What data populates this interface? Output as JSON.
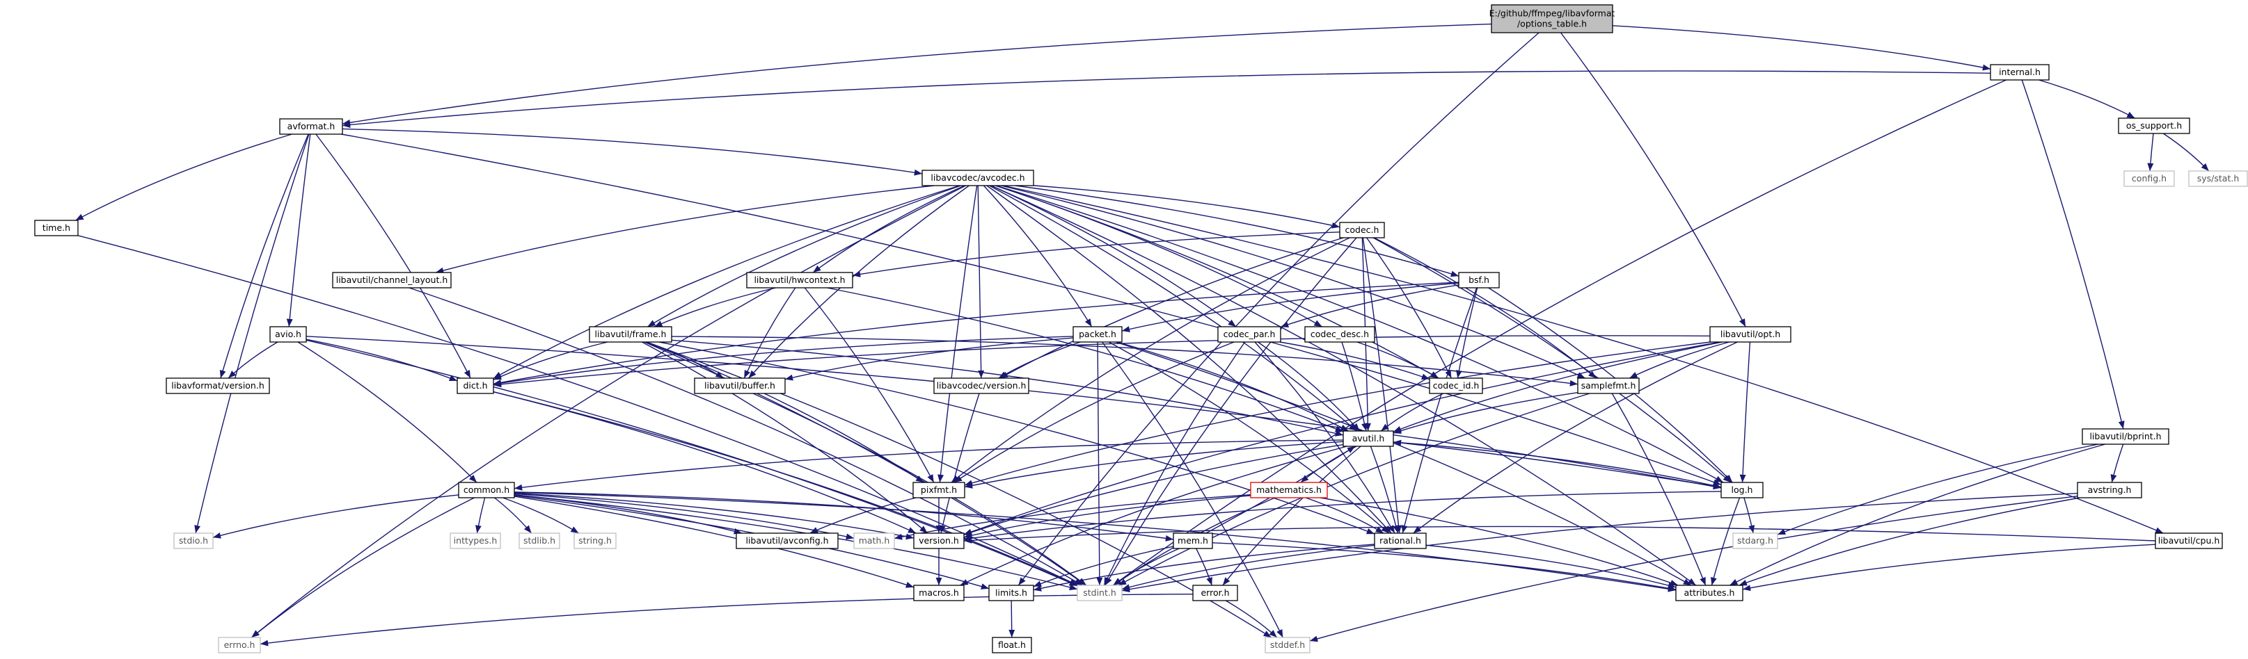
{
  "graph": {
    "root": "options_table.h",
    "nodes": [
      {
        "id": "root",
        "label": "E:/github/ffmpeg/libavformat\n/options_table.h",
        "kind": "root"
      },
      {
        "id": "internal",
        "label": "internal.h"
      },
      {
        "id": "avformat",
        "label": "avformat.h"
      },
      {
        "id": "os_support",
        "label": "os_support.h"
      },
      {
        "id": "config",
        "label": "config.h",
        "kind": "system"
      },
      {
        "id": "sysstat",
        "label": "sys/stat.h",
        "kind": "system"
      },
      {
        "id": "time",
        "label": "time.h"
      },
      {
        "id": "avcodec",
        "label": "libavcodec/avcodec.h"
      },
      {
        "id": "codec",
        "label": "codec.h"
      },
      {
        "id": "bsf",
        "label": "bsf.h"
      },
      {
        "id": "chlayout",
        "label": "libavutil/channel_layout.h"
      },
      {
        "id": "hwcontext",
        "label": "libavutil/hwcontext.h"
      },
      {
        "id": "avio",
        "label": "avio.h"
      },
      {
        "id": "frame",
        "label": "libavutil/frame.h"
      },
      {
        "id": "packet",
        "label": "packet.h"
      },
      {
        "id": "codec_par",
        "label": "codec_par.h"
      },
      {
        "id": "codec_desc",
        "label": "codec_desc.h"
      },
      {
        "id": "opt",
        "label": "libavutil/opt.h"
      },
      {
        "id": "lafversion",
        "label": "libavformat/version.h"
      },
      {
        "id": "dict",
        "label": "dict.h"
      },
      {
        "id": "buffer",
        "label": "libavutil/buffer.h"
      },
      {
        "id": "lacversion",
        "label": "libavcodec/version.h"
      },
      {
        "id": "codec_id",
        "label": "codec_id.h"
      },
      {
        "id": "samplefmt",
        "label": "samplefmt.h"
      },
      {
        "id": "bprint",
        "label": "libavutil/bprint.h"
      },
      {
        "id": "avutil",
        "label": "avutil.h"
      },
      {
        "id": "common",
        "label": "common.h"
      },
      {
        "id": "pixfmt",
        "label": "pixfmt.h"
      },
      {
        "id": "mathematics",
        "label": "mathematics.h",
        "kind": "warning"
      },
      {
        "id": "log",
        "label": "log.h"
      },
      {
        "id": "avstring",
        "label": "avstring.h"
      },
      {
        "id": "stdio",
        "label": "stdio.h",
        "kind": "system"
      },
      {
        "id": "inttypes",
        "label": "inttypes.h",
        "kind": "system"
      },
      {
        "id": "stdlib",
        "label": "stdlib.h",
        "kind": "system"
      },
      {
        "id": "string",
        "label": "string.h",
        "kind": "system"
      },
      {
        "id": "avconfig",
        "label": "libavutil/avconfig.h"
      },
      {
        "id": "math",
        "label": "math.h",
        "kind": "system"
      },
      {
        "id": "version",
        "label": "version.h"
      },
      {
        "id": "mem",
        "label": "mem.h"
      },
      {
        "id": "rational",
        "label": "rational.h"
      },
      {
        "id": "stdarg",
        "label": "stdarg.h",
        "kind": "system"
      },
      {
        "id": "cpu",
        "label": "libavutil/cpu.h"
      },
      {
        "id": "macros",
        "label": "macros.h"
      },
      {
        "id": "limits",
        "label": "limits.h"
      },
      {
        "id": "stdint",
        "label": "stdint.h",
        "kind": "system"
      },
      {
        "id": "attributes",
        "label": "attributes.h"
      },
      {
        "id": "error",
        "label": "error.h"
      },
      {
        "id": "errno",
        "label": "errno.h",
        "kind": "system"
      },
      {
        "id": "float",
        "label": "float.h"
      },
      {
        "id": "stddef",
        "label": "stddef.h",
        "kind": "system"
      }
    ],
    "edges": [
      [
        "root",
        "internal"
      ],
      [
        "root",
        "avformat"
      ],
      [
        "root",
        "opt"
      ],
      [
        "root",
        "limits"
      ],
      [
        "internal",
        "avformat"
      ],
      [
        "internal",
        "os_support"
      ],
      [
        "internal",
        "bprint"
      ],
      [
        "internal",
        "stdint"
      ],
      [
        "os_support",
        "config"
      ],
      [
        "os_support",
        "sysstat"
      ],
      [
        "avformat",
        "time"
      ],
      [
        "avformat",
        "stdio"
      ],
      [
        "avformat",
        "avcodec"
      ],
      [
        "avformat",
        "avio"
      ],
      [
        "avformat",
        "lafversion"
      ],
      [
        "avformat",
        "dict"
      ],
      [
        "avformat",
        "log"
      ],
      [
        "time",
        "stdint"
      ],
      [
        "avcodec",
        "errno"
      ],
      [
        "avcodec",
        "chlayout"
      ],
      [
        "avcodec",
        "hwcontext"
      ],
      [
        "avcodec",
        "frame"
      ],
      [
        "avcodec",
        "buffer"
      ],
      [
        "avcodec",
        "dict"
      ],
      [
        "avcodec",
        "pixfmt"
      ],
      [
        "avcodec",
        "lacversion"
      ],
      [
        "avcodec",
        "packet"
      ],
      [
        "avcodec",
        "codec"
      ],
      [
        "avcodec",
        "codec_par"
      ],
      [
        "avcodec",
        "codec_desc"
      ],
      [
        "avcodec",
        "bsf"
      ],
      [
        "avcodec",
        "codec_id"
      ],
      [
        "avcodec",
        "samplefmt"
      ],
      [
        "avcodec",
        "avutil"
      ],
      [
        "avcodec",
        "log"
      ],
      [
        "avcodec",
        "rational"
      ],
      [
        "avcodec",
        "attributes"
      ],
      [
        "avcodec",
        "cpu"
      ],
      [
        "chlayout",
        "stdint"
      ],
      [
        "hwcontext",
        "frame"
      ],
      [
        "hwcontext",
        "buffer"
      ],
      [
        "hwcontext",
        "pixfmt"
      ],
      [
        "hwcontext",
        "avutil"
      ],
      [
        "avio",
        "lafversion"
      ],
      [
        "avio",
        "common"
      ],
      [
        "avio",
        "dict"
      ],
      [
        "avio",
        "log"
      ],
      [
        "avio",
        "stdint"
      ],
      [
        "frame",
        "dict"
      ],
      [
        "frame",
        "buffer"
      ],
      [
        "frame",
        "pixfmt"
      ],
      [
        "frame",
        "avutil"
      ],
      [
        "frame",
        "samplefmt"
      ],
      [
        "frame",
        "rational"
      ],
      [
        "frame",
        "version"
      ],
      [
        "frame",
        "stdint"
      ],
      [
        "frame",
        "stddef"
      ],
      [
        "codec",
        "hwcontext"
      ],
      [
        "codec",
        "avutil"
      ],
      [
        "codec",
        "log"
      ],
      [
        "codec",
        "pixfmt"
      ],
      [
        "codec",
        "rational"
      ],
      [
        "codec",
        "samplefmt"
      ],
      [
        "codec",
        "codec_id"
      ],
      [
        "codec",
        "lacversion"
      ],
      [
        "codec",
        "stdint"
      ],
      [
        "bsf",
        "codec_id"
      ],
      [
        "bsf",
        "codec_par"
      ],
      [
        "bsf",
        "packet"
      ],
      [
        "bsf",
        "dict"
      ],
      [
        "bsf",
        "log"
      ],
      [
        "bsf",
        "rational"
      ],
      [
        "packet",
        "dict"
      ],
      [
        "packet",
        "buffer"
      ],
      [
        "packet",
        "lacversion"
      ],
      [
        "packet",
        "avutil"
      ],
      [
        "packet",
        "rational"
      ],
      [
        "packet",
        "stdint"
      ],
      [
        "packet",
        "stddef"
      ],
      [
        "packet",
        "attributes"
      ],
      [
        "codec_par",
        "codec_id"
      ],
      [
        "codec_par",
        "avutil"
      ],
      [
        "codec_par",
        "pixfmt"
      ],
      [
        "codec_par",
        "rational"
      ],
      [
        "codec_par",
        "stdint"
      ],
      [
        "codec_desc",
        "codec_id"
      ],
      [
        "codec_desc",
        "avutil"
      ],
      [
        "opt",
        "dict"
      ],
      [
        "opt",
        "avutil"
      ],
      [
        "opt",
        "log"
      ],
      [
        "opt",
        "rational"
      ],
      [
        "opt",
        "pixfmt"
      ],
      [
        "opt",
        "samplefmt"
      ],
      [
        "opt",
        "version"
      ],
      [
        "dict",
        "stdint"
      ],
      [
        "dict",
        "version"
      ],
      [
        "buffer",
        "stdint"
      ],
      [
        "lacversion",
        "version"
      ],
      [
        "codec_id",
        "avutil"
      ],
      [
        "samplefmt",
        "avutil"
      ],
      [
        "samplefmt",
        "attributes"
      ],
      [
        "samplefmt",
        "stdint"
      ],
      [
        "bprint",
        "stdarg"
      ],
      [
        "bprint",
        "attributes"
      ],
      [
        "bprint",
        "avstring"
      ],
      [
        "avutil",
        "common"
      ],
      [
        "avutil",
        "rational"
      ],
      [
        "avutil",
        "version"
      ],
      [
        "avutil",
        "macros"
      ],
      [
        "avutil",
        "mathematics"
      ],
      [
        "avutil",
        "log"
      ],
      [
        "avutil",
        "pixfmt"
      ],
      [
        "avutil",
        "error"
      ],
      [
        "mathematics",
        "stdint"
      ],
      [
        "mathematics",
        "math"
      ],
      [
        "mathematics",
        "attributes"
      ],
      [
        "mathematics",
        "rational"
      ],
      [
        "mathematics",
        "version"
      ],
      [
        "common",
        "errno"
      ],
      [
        "common",
        "inttypes"
      ],
      [
        "common",
        "limits"
      ],
      [
        "common",
        "math"
      ],
      [
        "common",
        "stdint"
      ],
      [
        "common",
        "stdio"
      ],
      [
        "common",
        "stdlib"
      ],
      [
        "common",
        "string"
      ],
      [
        "common",
        "attributes"
      ],
      [
        "common",
        "macros"
      ],
      [
        "common",
        "version"
      ],
      [
        "common",
        "avconfig"
      ],
      [
        "common",
        "mem"
      ],
      [
        "pixfmt",
        "avconfig"
      ],
      [
        "pixfmt",
        "version"
      ],
      [
        "log",
        "stdarg"
      ],
      [
        "log",
        "avutil"
      ],
      [
        "log",
        "attributes"
      ],
      [
        "log",
        "version"
      ],
      [
        "avstring",
        "stddef"
      ],
      [
        "avstring",
        "stdint"
      ],
      [
        "avstring",
        "attributes"
      ],
      [
        "cpu",
        "attributes"
      ],
      [
        "cpu",
        "version"
      ],
      [
        "mem",
        "limits"
      ],
      [
        "mem",
        "stdint"
      ],
      [
        "mem",
        "attributes"
      ],
      [
        "mem",
        "avutil"
      ],
      [
        "mem",
        "error"
      ],
      [
        "rational",
        "stdint"
      ],
      [
        "rational",
        "limits"
      ],
      [
        "rational",
        "attributes"
      ],
      [
        "version",
        "macros"
      ],
      [
        "error",
        "errno"
      ],
      [
        "error",
        "stddef"
      ],
      [
        "limits",
        "float"
      ]
    ]
  }
}
